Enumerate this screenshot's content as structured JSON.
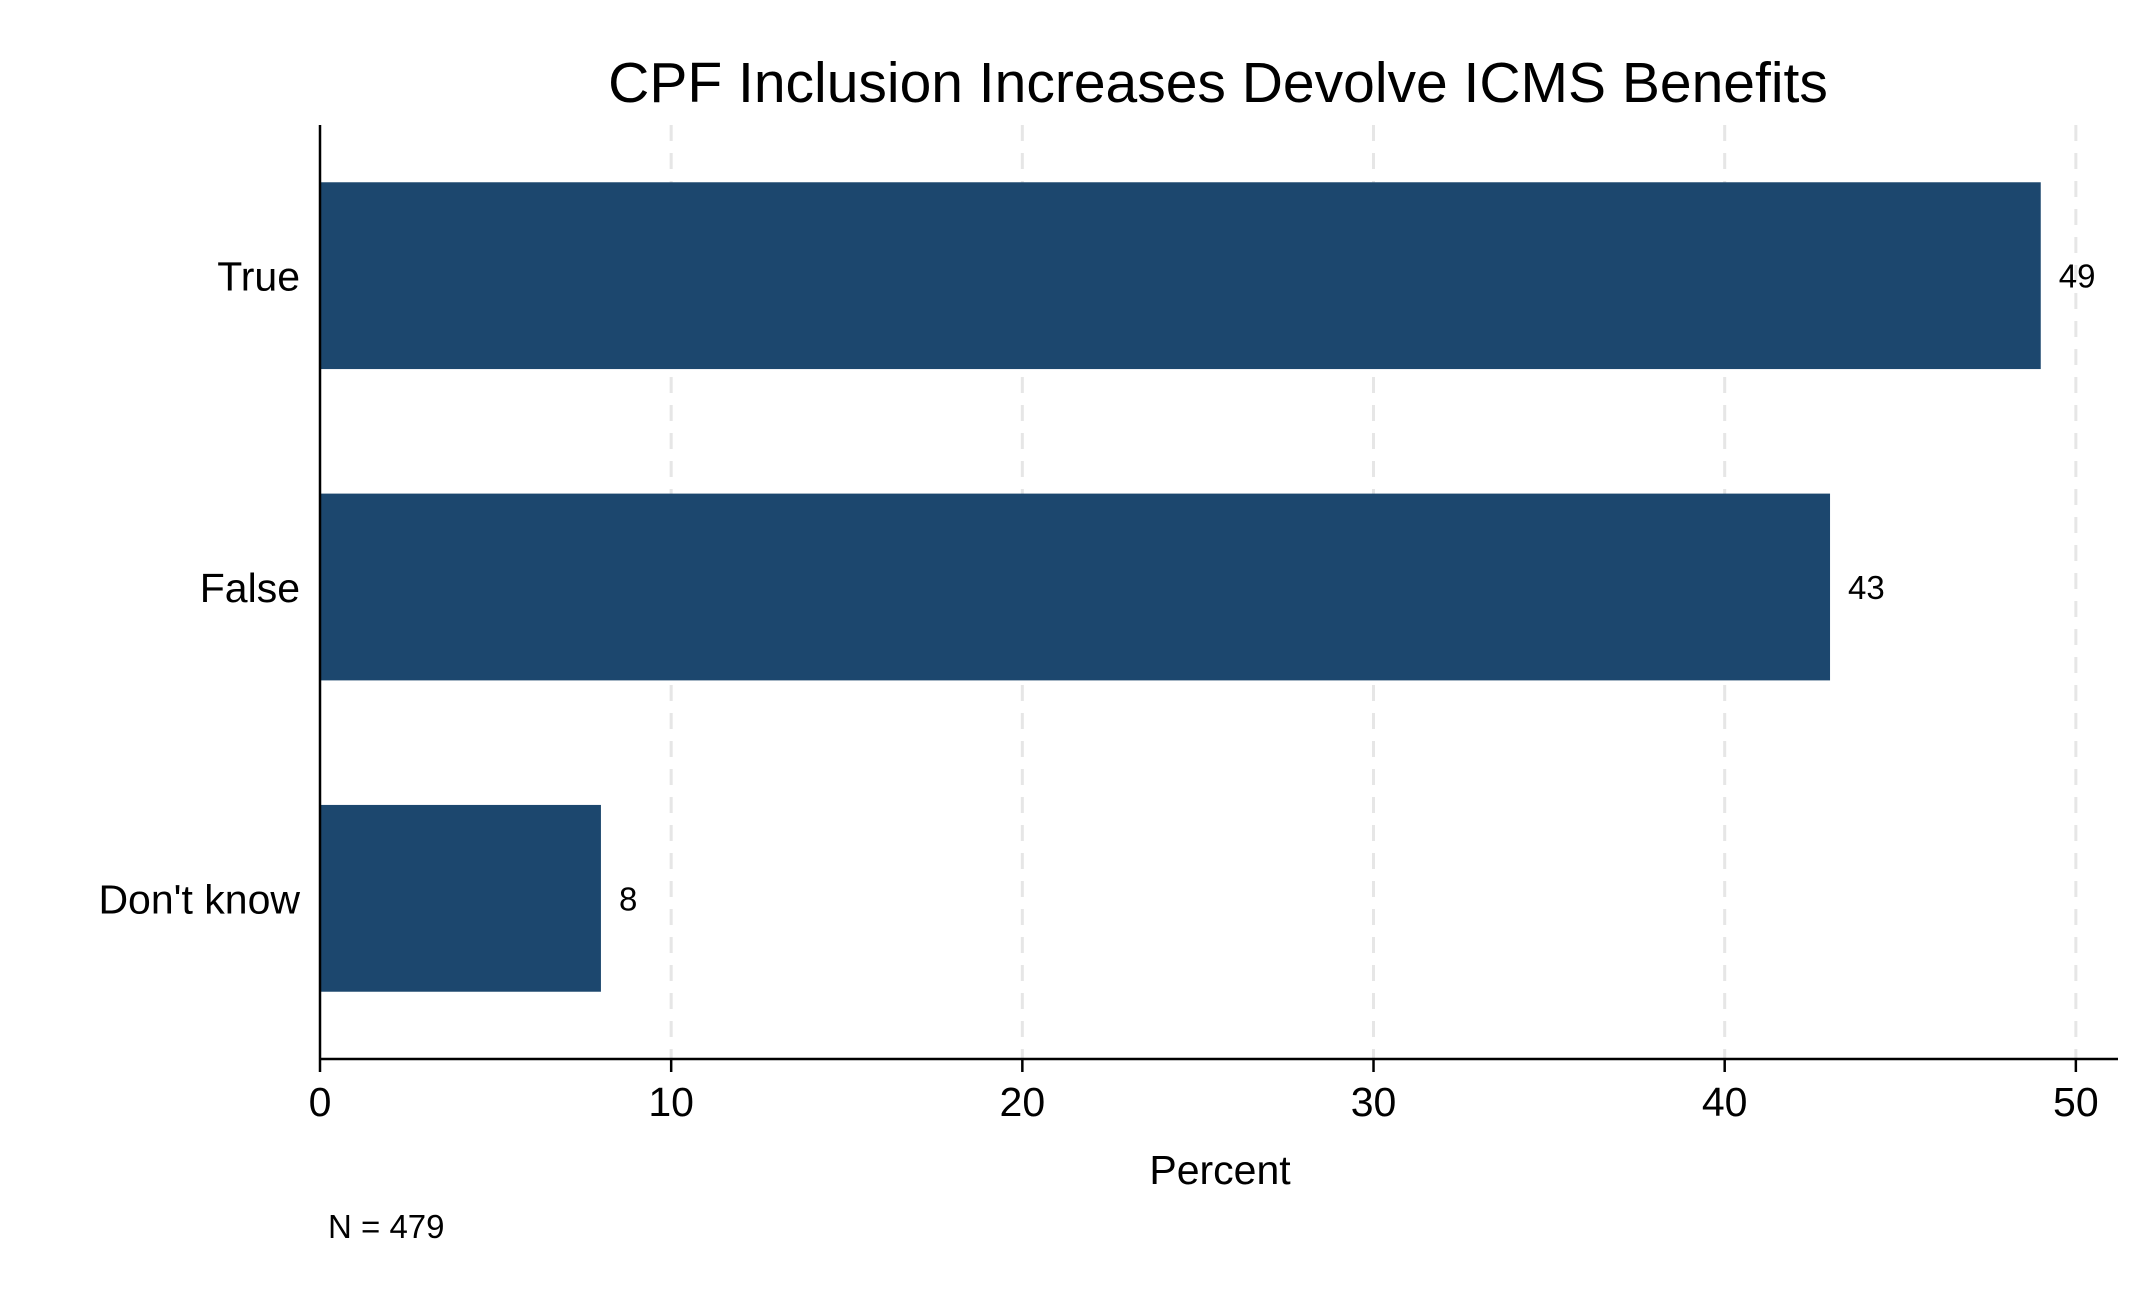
{
  "chart_data": {
    "type": "bar",
    "orientation": "horizontal",
    "title": "CPF Inclusion Increases Devolve ICMS Benefits",
    "categories": [
      "True",
      "False",
      "Don't know"
    ],
    "values": [
      49,
      43,
      8
    ],
    "data_labels": [
      "49",
      "43",
      "8"
    ],
    "xlabel": "Percent",
    "ylabel": "",
    "xlim": [
      0,
      51.2
    ],
    "xticks": [
      0,
      10,
      20,
      30,
      40,
      50
    ],
    "xtick_labels": [
      "0",
      "10",
      "20",
      "30",
      "40",
      "50"
    ],
    "grid": "vertical dashed",
    "note": "N = 479",
    "bar_color": "#1c476e"
  }
}
